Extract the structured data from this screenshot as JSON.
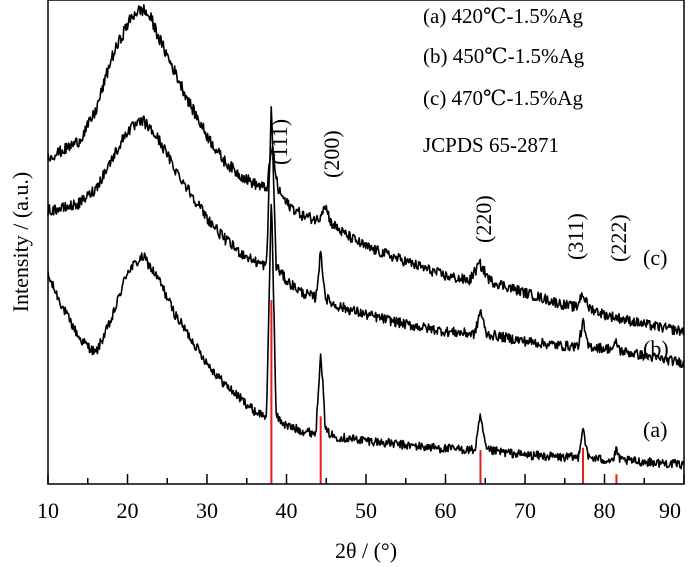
{
  "chart_data": {
    "type": "line",
    "title": "",
    "xlabel": "2θ / (°)",
    "ylabel": "Intensity / (a.u.)",
    "xlim": [
      10,
      90
    ],
    "xticks": [
      10,
      20,
      30,
      40,
      50,
      60,
      70,
      80,
      90
    ],
    "ylim": [
      0,
      100
    ],
    "grid": false,
    "legend_position": "top-right",
    "legend": [
      "(a) 420℃-1.5%Ag",
      "(b) 450℃-1.5%Ag",
      "(c) 470℃-1.5%Ag",
      "JCPDS 65-2871"
    ],
    "series": [
      {
        "name": "(a) 420℃-1.5%Ag",
        "label": "(a)",
        "color": "#000000",
        "x": [
          10,
          12,
          14,
          16,
          18,
          20,
          22,
          24,
          26,
          28,
          30,
          32,
          34,
          36,
          37.5,
          38.1,
          38.7,
          40,
          42,
          43.7,
          44.3,
          44.9,
          46,
          50,
          55,
          60,
          63.7,
          64.4,
          65.1,
          70,
          75,
          76.7,
          77.3,
          77.9,
          80,
          81.1,
          81.5,
          82,
          85,
          90
        ],
        "y": [
          43,
          36,
          30,
          27,
          34,
          44,
          47,
          42,
          35,
          30,
          25,
          21,
          18,
          15,
          14,
          60,
          14,
          12,
          11,
          10.5,
          28,
          11,
          9.8,
          9,
          8,
          7.3,
          7,
          14,
          7,
          6,
          5.5,
          5.5,
          12,
          5.5,
          5,
          5,
          7,
          4.9,
          4.6,
          4
        ]
      },
      {
        "name": "(b) 450℃-1.5%Ag",
        "label": "(b)",
        "color": "#000000",
        "x": [
          10,
          12,
          14,
          16,
          18,
          20,
          22,
          24,
          26,
          28,
          30,
          32,
          34,
          36,
          37.5,
          38.1,
          38.7,
          40,
          42,
          43.7,
          44.3,
          44.9,
          46,
          50,
          55,
          60,
          63.7,
          64.4,
          65.1,
          70,
          75,
          76.7,
          77.3,
          77.9,
          80,
          81.1,
          81.5,
          82,
          85,
          90
        ],
        "y": [
          56.5,
          57,
          58,
          61,
          67,
          73,
          75,
          71,
          65,
          60,
          55,
          51,
          48,
          46,
          45,
          78,
          45,
          42,
          39.5,
          38.5,
          48,
          38.5,
          37,
          35,
          33,
          31.5,
          31,
          36,
          31,
          29.5,
          28.5,
          28.5,
          33.5,
          28.5,
          28,
          28,
          29.3,
          27.5,
          26.5,
          25
        ]
      },
      {
        "name": "(c) 470℃-1.5%Ag",
        "label": "(c)",
        "color": "#000000",
        "x": [
          10,
          12,
          14,
          16,
          18,
          20,
          21,
          22,
          23,
          24,
          26,
          28,
          30,
          32,
          34,
          36,
          37.5,
          38.2,
          38.9,
          40,
          42,
          44,
          44.8,
          45.6,
          47,
          50,
          55,
          60,
          63,
          64.3,
          65.6,
          70,
          75,
          76.5,
          77.2,
          78,
          80,
          85,
          90
        ],
        "y": [
          67.5,
          69,
          71,
          77,
          88,
          95,
          97.5,
          98,
          96,
          92,
          85,
          78,
          72,
          67,
          64,
          62,
          61,
          70,
          61,
          58,
          55.5,
          54.5,
          58,
          54,
          52,
          49,
          46,
          43,
          42,
          45.5,
          42,
          39.5,
          37,
          36.5,
          39.5,
          36.5,
          35,
          33,
          31.5
        ]
      }
    ],
    "reference_peaks": {
      "name": "JCPDS 65-2871",
      "color": "#e0201b",
      "x": [
        38.1,
        44.3,
        64.4,
        77.3,
        81.5
      ],
      "y": [
        38,
        14,
        7,
        7.5,
        2
      ]
    },
    "peak_labels": [
      {
        "text": "(111)",
        "x": 38.1
      },
      {
        "text": "(200)",
        "x": 44.3
      },
      {
        "text": "(220)",
        "x": 64.4
      },
      {
        "text": "(311)",
        "x": 77.3
      },
      {
        "text": "(222)",
        "x": 81.5
      }
    ]
  }
}
